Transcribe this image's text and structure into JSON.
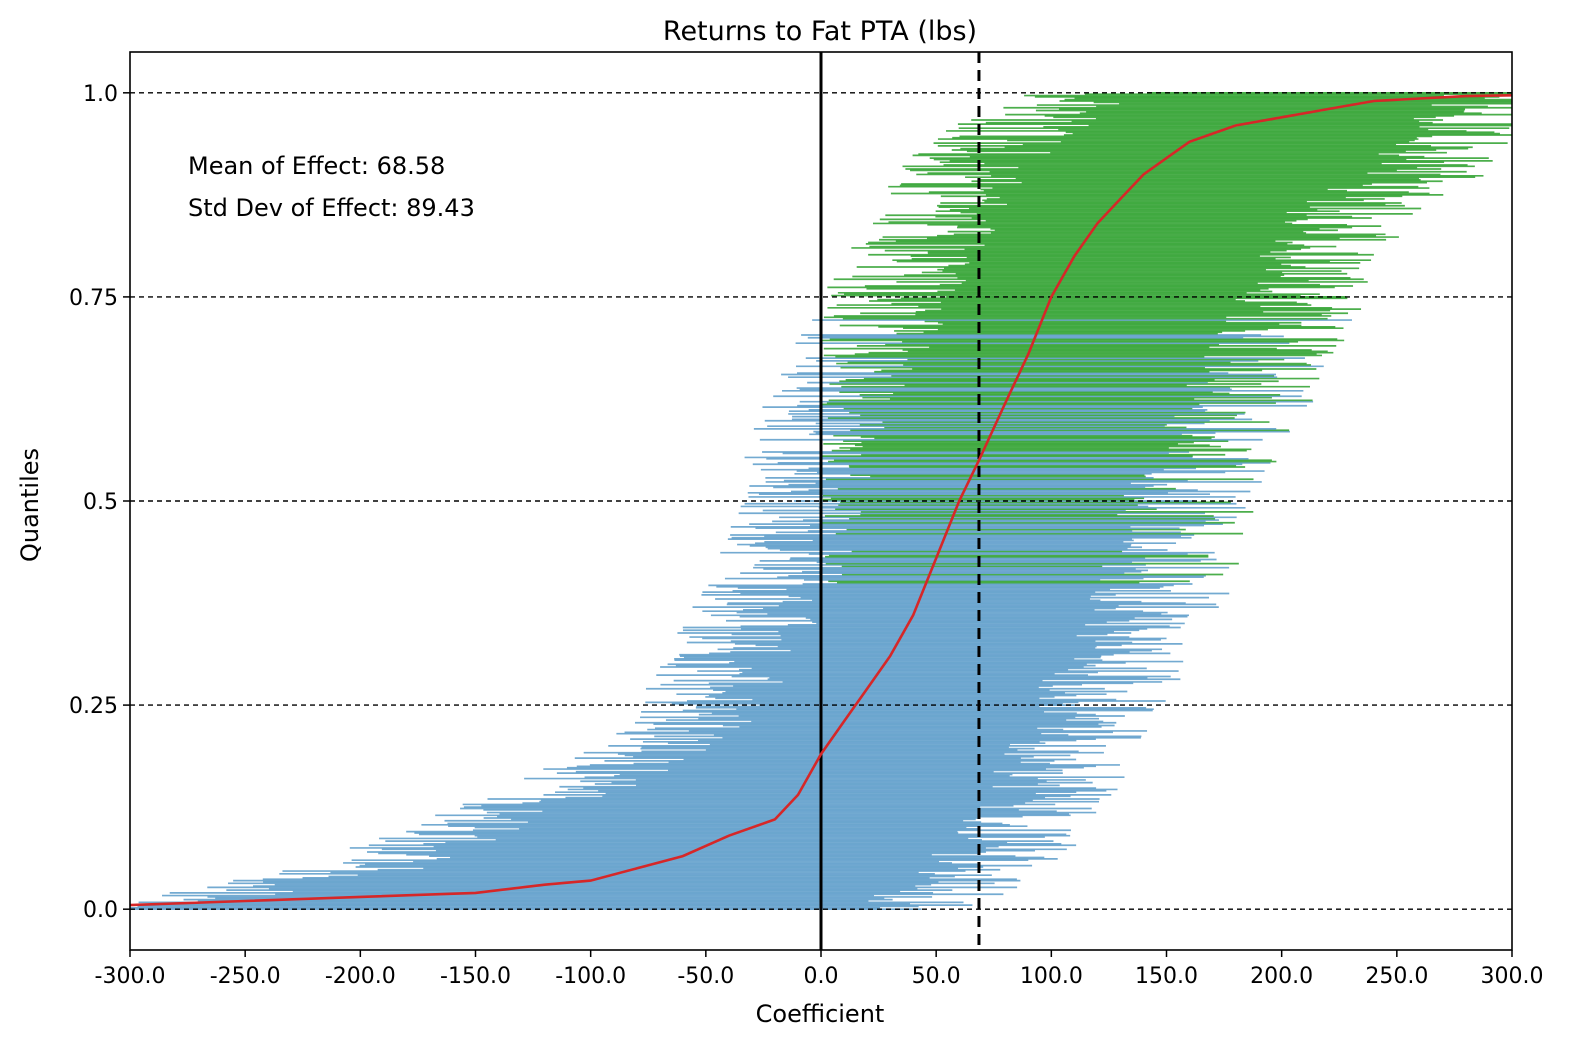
{
  "chart_data": {
    "type": "line",
    "title": "Returns to Fat PTA (lbs)",
    "xlabel": "Coefficient",
    "ylabel": "Quantiles",
    "xlim": [
      -300,
      300
    ],
    "ylim": [
      -0.05,
      1.05
    ],
    "x_ticks": [
      -300,
      -250,
      -200,
      -150,
      -100,
      -50,
      0,
      50,
      100,
      150,
      200,
      250,
      300
    ],
    "x_tick_labels": [
      "-300.0",
      "-250.0",
      "-200.0",
      "-150.0",
      "-100.0",
      "-50.0",
      "0.0",
      "50.0",
      "100.0",
      "150.0",
      "200.0",
      "250.0",
      "300.0"
    ],
    "y_ticks": [
      0.0,
      0.25,
      0.5,
      0.75,
      1.0
    ],
    "y_tick_labels": [
      "0.0",
      "0.25",
      "0.5",
      "0.75",
      "1.0"
    ],
    "grid": "horizontal dashed at y ticks",
    "annotations": [
      "Mean of Effect: 68.58",
      "Std Dev of Effect: 89.43"
    ],
    "reference_lines": {
      "zero_line_x": 0,
      "mean_line_x": 68.58
    },
    "series": [
      {
        "kind": "quantile curve of coefficient",
        "color": "#d62728",
        "x": [
          -300,
          -250,
          -200,
          -150,
          -120,
          -100,
          -80,
          -60,
          -40,
          -20,
          -10,
          0,
          10,
          20,
          30,
          40,
          50,
          60,
          68.58,
          80,
          90,
          100,
          110,
          120,
          130,
          140,
          150,
          160,
          170,
          180,
          200,
          220,
          240,
          260,
          280,
          300
        ],
        "y": [
          0.005,
          0.01,
          0.015,
          0.02,
          0.03,
          0.035,
          0.05,
          0.065,
          0.09,
          0.11,
          0.14,
          0.19,
          0.23,
          0.27,
          0.31,
          0.36,
          0.43,
          0.5,
          0.55,
          0.62,
          0.68,
          0.75,
          0.8,
          0.84,
          0.87,
          0.9,
          0.92,
          0.94,
          0.95,
          0.96,
          0.97,
          0.98,
          0.99,
          0.993,
          0.996,
          0.997
        ]
      }
    ],
    "confidence_intervals": {
      "not_significant_color": "#5b9bc9",
      "significant_color": "#2ca02c",
      "quantile": [
        0.0,
        0.05,
        0.1,
        0.15,
        0.2,
        0.25,
        0.3,
        0.35,
        0.4,
        0.45,
        0.5,
        0.55,
        0.6,
        0.65,
        0.7,
        0.75,
        0.8,
        0.85,
        0.9,
        0.95,
        1.0
      ],
      "lower": [
        -300,
        -200,
        -150,
        -110,
        -70,
        -50,
        -40,
        -30,
        -20,
        -15,
        -10,
        -5,
        0,
        10,
        20,
        30,
        40,
        50,
        60,
        80,
        120
      ],
      "upper": [
        40,
        70,
        90,
        100,
        110,
        120,
        130,
        140,
        150,
        155,
        160,
        170,
        180,
        190,
        200,
        210,
        220,
        230,
        260,
        280,
        300
      ]
    }
  }
}
